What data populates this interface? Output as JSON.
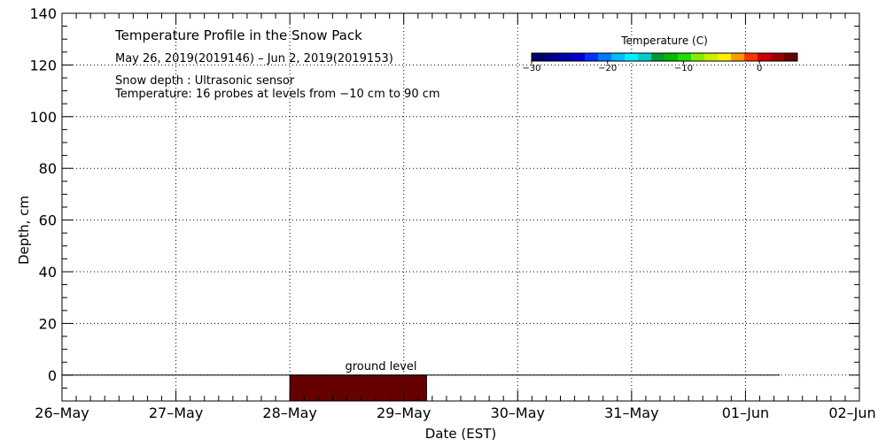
{
  "chart_data": {
    "type": "heatmap",
    "title": "Temperature Profile in the Snow Pack",
    "date_range": "May 26, 2019(2019146) – Jun  2, 2019(2019153)",
    "notes": [
      "Snow depth : Ultrasonic sensor",
      "Temperature: 16 probes at levels from −10 cm to 90 cm"
    ],
    "xlabel": "Date (EST)",
    "ylabel": "Depth, cm",
    "x_tick_labels": [
      "26–May",
      "27–May",
      "28–May",
      "29–May",
      "30–May",
      "31–May",
      "01–Jun",
      "02–Jun"
    ],
    "x_range_days": [
      0,
      7
    ],
    "ylim": [
      -10,
      140
    ],
    "y_ticks": [
      0,
      20,
      40,
      60,
      80,
      100,
      120,
      140
    ],
    "grid": true,
    "ground_level": {
      "label": "ground level",
      "depth": 0,
      "x_start_day": 0,
      "x_end_day": 6.3
    },
    "temperature_region": {
      "x_start_day": 2.0,
      "x_end_day": 3.2,
      "depth_from": -10,
      "depth_to": 0,
      "color": "#660000"
    },
    "colorbar": {
      "title": "Temperature (C)",
      "range": [
        -30,
        5
      ],
      "tick_values": [
        -30,
        -20,
        -10,
        0
      ],
      "tick_labels": [
        "−30",
        "−20",
        "−10",
        "0"
      ],
      "colors": [
        "#000066",
        "#000088",
        "#0000a8",
        "#0000cc",
        "#0033ff",
        "#0077ff",
        "#00bbff",
        "#00eeff",
        "#00cccc",
        "#009933",
        "#00bb00",
        "#22dd00",
        "#88ee00",
        "#ccee00",
        "#ffee00",
        "#ff9900",
        "#ff3300",
        "#cc0000",
        "#990000",
        "#660000"
      ]
    }
  }
}
